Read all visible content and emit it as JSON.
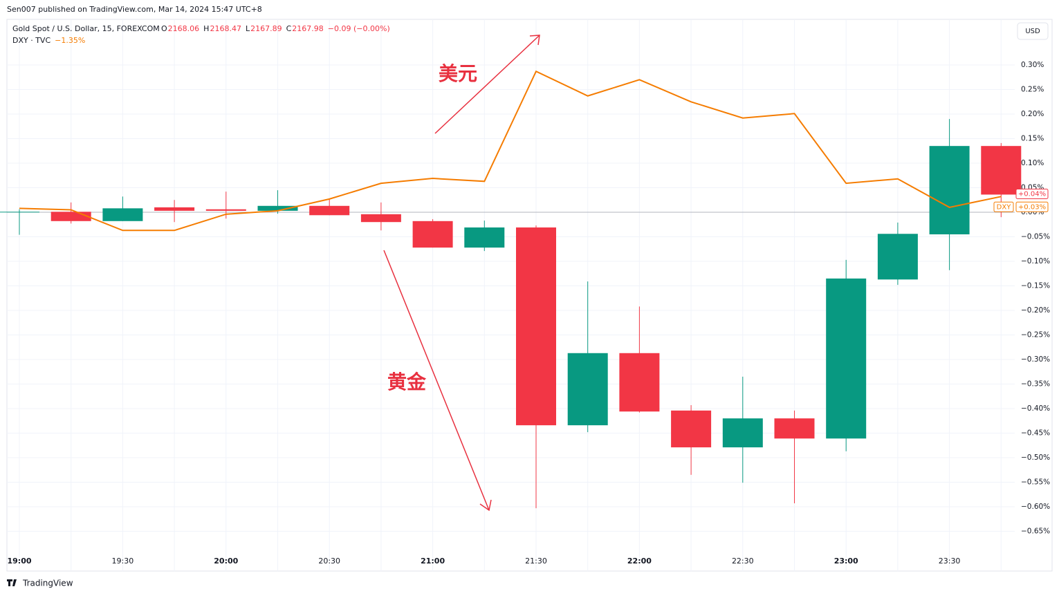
{
  "header": {
    "publisher": "Sen007 published on TradingView.com, Mar 14, 2024 15:47 UTC+8",
    "currency": "USD",
    "brand": "TradingView"
  },
  "chart_data": {
    "type": "candlestick",
    "categories": [
      "19:00",
      null,
      "19:30",
      null,
      "20:00",
      null,
      "20:30",
      null,
      "21:00",
      null,
      "21:30",
      null,
      "22:00",
      null,
      "22:30",
      null,
      "23:00",
      null,
      "23:30",
      null
    ],
    "ylim": [
      -0.731,
      0.393
    ],
    "yticks": [
      {
        "value": 0.3,
        "label": "0.30%"
      },
      {
        "value": 0.25,
        "label": "0.25%"
      },
      {
        "value": 0.2,
        "label": "0.20%"
      },
      {
        "value": 0.15,
        "label": "0.15%"
      },
      {
        "value": 0.1,
        "label": "0.10%"
      },
      {
        "value": 0.05,
        "label": "0.05%"
      },
      {
        "value": 0,
        "label": "0.00%"
      },
      {
        "value": -0.05,
        "label": "−0.05%"
      },
      {
        "value": -0.1,
        "label": "−0.10%"
      },
      {
        "value": -0.15,
        "label": "−0.15%"
      },
      {
        "value": -0.2,
        "label": "−0.20%"
      },
      {
        "value": -0.25,
        "label": "−0.25%"
      },
      {
        "value": -0.3,
        "label": "−0.30%"
      },
      {
        "value": -0.35,
        "label": "−0.35%"
      },
      {
        "value": -0.4,
        "label": "−0.40%"
      },
      {
        "value": -0.45,
        "label": "−0.45%"
      },
      {
        "value": -0.5,
        "label": "−0.50%"
      },
      {
        "value": -0.55,
        "label": "−0.55%"
      },
      {
        "value": -0.6,
        "label": "−0.60%"
      },
      {
        "value": -0.65,
        "label": "−0.65%"
      }
    ],
    "grid": true,
    "series": [
      {
        "name": "Gold Spot / U.S. Dollar, 15, FOREXCOM",
        "type": "candlestick",
        "up_color": "#089981",
        "down_color": "#f23645",
        "ohlc_legend": [
          {
            "label": "O",
            "value": 2168.06
          },
          {
            "label": "H",
            "value": 2168.47
          },
          {
            "label": "L",
            "value": 2167.89
          },
          {
            "label": "C",
            "value": 2167.98
          }
        ],
        "change": "−0.09 (−0.00%)",
        "open": [
          0,
          0.001,
          -0.018,
          0.01,
          0.006,
          0.003,
          0.013,
          -0.004,
          -0.018,
          -0.072,
          -0.031,
          -0.434,
          -0.287,
          -0.404,
          -0.479,
          -0.42,
          -0.461,
          -0.137,
          -0.045,
          0.135
        ],
        "high": [
          0.006,
          0.02,
          0.032,
          0.025,
          0.042,
          0.045,
          0.028,
          0.02,
          -0.014,
          -0.017,
          -0.027,
          -0.141,
          -0.192,
          -0.393,
          -0.335,
          -0.404,
          -0.097,
          -0.021,
          0.19,
          0.141
        ],
        "low": [
          -0.046,
          -0.023,
          -0.018,
          -0.02,
          -0.013,
          -0.003,
          -0.006,
          -0.037,
          -0.072,
          -0.079,
          -0.603,
          -0.448,
          -0.408,
          -0.535,
          -0.551,
          -0.593,
          -0.487,
          -0.148,
          -0.118,
          -0.01
        ],
        "close": [
          0.001,
          -0.018,
          0.008,
          0.003,
          0.003,
          0.013,
          -0.006,
          -0.02,
          -0.072,
          -0.031,
          -0.434,
          -0.287,
          -0.406,
          -0.479,
          -0.42,
          -0.461,
          -0.135,
          -0.044,
          0.135,
          0.036
        ],
        "last_label": "+0.04%"
      },
      {
        "name": "DXY · TVC",
        "type": "line",
        "color": "#f57c00",
        "change": "−1.35%",
        "tag": "DXY",
        "values": [
          0.008,
          0.005,
          -0.037,
          -0.037,
          -0.004,
          0.003,
          0.027,
          0.059,
          0.069,
          0.063,
          0.287,
          0.237,
          0.27,
          0.225,
          0.192,
          0.201,
          0.059,
          0.068,
          0.01,
          0.032
        ],
        "last_label": "+0.03%"
      }
    ],
    "annotations": [
      {
        "text": "美元"
      },
      {
        "text": "黄金"
      }
    ]
  }
}
